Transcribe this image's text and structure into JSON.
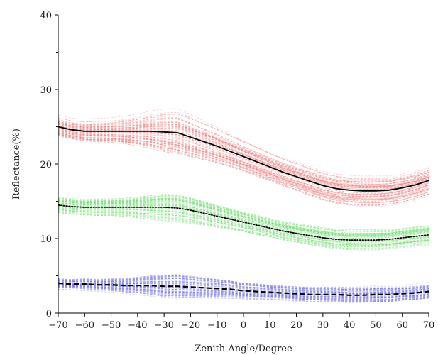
{
  "chart_data": {
    "type": "line",
    "title": "",
    "xlabel": "Zenith Angle/Degree",
    "ylabel": "Reflectance(%)",
    "xlim": [
      -70,
      70
    ],
    "ylim": [
      0,
      40
    ],
    "xticks": [
      -70,
      -60,
      -50,
      -40,
      -30,
      -20,
      -10,
      0,
      10,
      20,
      30,
      40,
      50,
      60,
      70
    ],
    "yticks": [
      0,
      10,
      20,
      30,
      40
    ],
    "x_tick_labels": [
      "-70",
      "-60",
      "-50",
      "-40",
      "-30",
      "-20",
      "-10",
      "0",
      "10",
      "20",
      "30",
      "40",
      "50",
      "60",
      "70"
    ],
    "y_tick_labels": [
      "0",
      "10",
      "20",
      "30",
      "40"
    ],
    "grid": false,
    "legend": "none",
    "series": [
      {
        "group": "red",
        "color": "#e05050",
        "bundle_color": "#f08080",
        "line_style": "solid",
        "mean_color": "#000000",
        "x": [
          -70,
          -65,
          -60,
          -55,
          -50,
          -45,
          -40,
          -35,
          -30,
          -25,
          -20,
          -15,
          -10,
          -5,
          0,
          5,
          10,
          15,
          20,
          25,
          30,
          35,
          40,
          45,
          50,
          55,
          60,
          65,
          70
        ],
        "values": [
          25.0,
          24.6,
          24.4,
          24.4,
          24.4,
          24.4,
          24.4,
          24.4,
          24.3,
          24.2,
          23.6,
          23.0,
          22.4,
          21.7,
          21.0,
          20.3,
          19.6,
          18.9,
          18.3,
          17.7,
          17.1,
          16.7,
          16.5,
          16.4,
          16.4,
          16.5,
          16.8,
          17.2,
          17.8
        ],
        "spread": [
          1.2,
          1.2,
          1.3,
          1.4,
          1.5,
          1.7,
          2.0,
          2.4,
          2.8,
          3.0,
          2.9,
          2.7,
          2.5,
          2.3,
          2.2,
          2.1,
          2.0,
          2.0,
          2.0,
          2.0,
          2.0,
          2.0,
          2.0,
          2.0,
          2.0,
          1.9,
          1.9,
          1.8,
          1.8
        ]
      },
      {
        "group": "green",
        "color": "#3ccf3c",
        "bundle_color": "#7ee07e",
        "line_style": "dotted",
        "mean_color": "#000000",
        "x": [
          -70,
          -65,
          -60,
          -55,
          -50,
          -45,
          -40,
          -35,
          -30,
          -25,
          -20,
          -15,
          -10,
          -5,
          0,
          5,
          10,
          15,
          20,
          25,
          30,
          35,
          40,
          45,
          50,
          55,
          60,
          65,
          70
        ],
        "values": [
          14.5,
          14.3,
          14.2,
          14.2,
          14.2,
          14.2,
          14.2,
          14.2,
          14.2,
          14.1,
          13.8,
          13.4,
          13.0,
          12.6,
          12.2,
          11.8,
          11.4,
          11.0,
          10.7,
          10.4,
          10.1,
          9.9,
          9.8,
          9.8,
          9.8,
          9.9,
          10.1,
          10.3,
          10.5
        ],
        "spread": [
          0.9,
          0.9,
          0.9,
          1.0,
          1.0,
          1.1,
          1.3,
          1.5,
          1.7,
          1.8,
          1.7,
          1.6,
          1.5,
          1.4,
          1.3,
          1.3,
          1.2,
          1.2,
          1.2,
          1.2,
          1.2,
          1.2,
          1.2,
          1.2,
          1.2,
          1.1,
          1.1,
          1.1,
          1.1
        ]
      },
      {
        "group": "blue",
        "color": "#3a3adc",
        "bundle_color": "#8080e8",
        "line_style": "dashed",
        "mean_color": "#000000",
        "x": [
          -70,
          -65,
          -60,
          -55,
          -50,
          -45,
          -40,
          -35,
          -30,
          -25,
          -20,
          -15,
          -10,
          -5,
          0,
          5,
          10,
          15,
          20,
          25,
          30,
          35,
          40,
          45,
          50,
          55,
          60,
          65,
          70
        ],
        "values": [
          4.0,
          3.9,
          3.9,
          3.8,
          3.8,
          3.7,
          3.7,
          3.7,
          3.6,
          3.6,
          3.5,
          3.4,
          3.3,
          3.2,
          3.0,
          2.9,
          2.8,
          2.7,
          2.6,
          2.5,
          2.5,
          2.5,
          2.4,
          2.4,
          2.5,
          2.5,
          2.6,
          2.7,
          2.9
        ],
        "spread": [
          0.5,
          0.5,
          0.6,
          0.6,
          0.7,
          0.8,
          1.0,
          1.2,
          1.4,
          1.5,
          1.4,
          1.3,
          1.2,
          1.1,
          1.0,
          1.0,
          0.9,
          0.9,
          0.9,
          0.9,
          0.9,
          0.9,
          0.9,
          0.9,
          0.9,
          0.9,
          0.8,
          0.8,
          0.8
        ]
      }
    ]
  }
}
